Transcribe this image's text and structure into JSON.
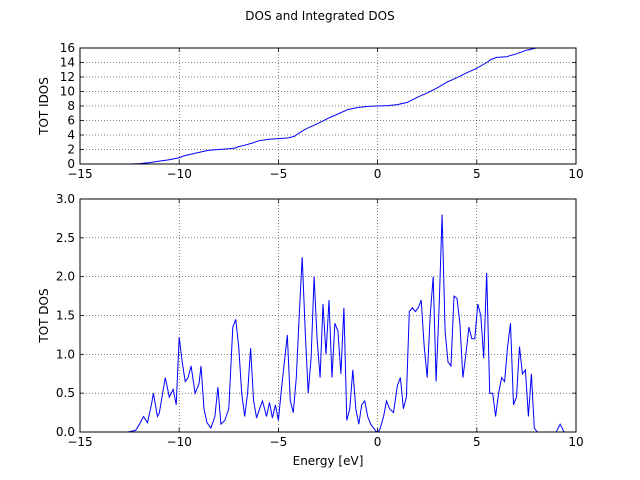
{
  "figure": {
    "title": "DOS and Integrated DOS"
  },
  "chart_data": [
    {
      "type": "line",
      "title": "",
      "xlabel": "",
      "ylabel": "TOT IDOS",
      "xlim": [
        -15,
        10
      ],
      "ylim": [
        0,
        16
      ],
      "xticks": [
        -15,
        -10,
        -5,
        0,
        5,
        10
      ],
      "xtick_labels": [
        "−15",
        "−10",
        "−5",
        "0",
        "5",
        "10"
      ],
      "yticks": [
        0,
        2,
        4,
        6,
        8,
        10,
        12,
        14,
        16
      ],
      "ytick_labels": [
        "0",
        "2",
        "4",
        "6",
        "8",
        "10",
        "12",
        "14",
        "16"
      ],
      "grid": true,
      "color": "#0000ff",
      "x": [
        -12.5,
        -12.0,
        -11.5,
        -11.0,
        -10.5,
        -10.0,
        -9.8,
        -9.5,
        -9.0,
        -8.5,
        -8.0,
        -7.5,
        -7.2,
        -7.0,
        -6.7,
        -6.3,
        -6.0,
        -5.5,
        -5.0,
        -4.5,
        -4.2,
        -4.0,
        -3.7,
        -3.5,
        -3.0,
        -2.5,
        -2.0,
        -1.5,
        -1.0,
        -0.5,
        0.0,
        0.5,
        1.0,
        1.5,
        2.0,
        2.5,
        3.0,
        3.5,
        4.0,
        4.5,
        5.0,
        5.5,
        5.7,
        6.0,
        6.5,
        7.0,
        7.5,
        8.0
      ],
      "y": [
        0.0,
        0.05,
        0.2,
        0.4,
        0.6,
        0.85,
        1.1,
        1.3,
        1.6,
        1.9,
        2.0,
        2.1,
        2.2,
        2.4,
        2.6,
        2.9,
        3.2,
        3.4,
        3.5,
        3.6,
        3.8,
        4.2,
        4.7,
        5.0,
        5.6,
        6.3,
        6.9,
        7.5,
        7.8,
        7.95,
        8.0,
        8.05,
        8.2,
        8.5,
        9.2,
        9.8,
        10.5,
        11.3,
        11.9,
        12.6,
        13.2,
        14.0,
        14.4,
        14.7,
        14.8,
        15.2,
        15.7,
        16.0
      ]
    },
    {
      "type": "line",
      "title": "",
      "xlabel": "Energy [eV]",
      "ylabel": "TOT DOS",
      "xlim": [
        -15,
        10
      ],
      "ylim": [
        0,
        3.0
      ],
      "xticks": [
        -15,
        -10,
        -5,
        0,
        5,
        10
      ],
      "xtick_labels": [
        "−15",
        "−10",
        "−5",
        "0",
        "5",
        "10"
      ],
      "yticks": [
        0.0,
        0.5,
        1.0,
        1.5,
        2.0,
        2.5,
        3.0
      ],
      "ytick_labels": [
        "0.0",
        "0.5",
        "1.0",
        "1.5",
        "2.0",
        "2.5",
        "3.0"
      ],
      "grid": true,
      "color": "#0000ff",
      "x": [
        -12.6,
        -12.2,
        -12.0,
        -11.8,
        -11.6,
        -11.4,
        -11.3,
        -11.1,
        -11.0,
        -10.8,
        -10.7,
        -10.5,
        -10.3,
        -10.15,
        -10.0,
        -9.85,
        -9.7,
        -9.55,
        -9.4,
        -9.2,
        -9.0,
        -8.9,
        -8.75,
        -8.6,
        -8.4,
        -8.2,
        -8.05,
        -7.9,
        -7.7,
        -7.5,
        -7.3,
        -7.15,
        -7.0,
        -6.85,
        -6.7,
        -6.55,
        -6.4,
        -6.25,
        -6.1,
        -5.95,
        -5.8,
        -5.6,
        -5.45,
        -5.3,
        -5.15,
        -5.0,
        -4.85,
        -4.7,
        -4.55,
        -4.4,
        -4.25,
        -4.1,
        -3.95,
        -3.8,
        -3.65,
        -3.5,
        -3.35,
        -3.2,
        -3.05,
        -2.9,
        -2.75,
        -2.6,
        -2.45,
        -2.3,
        -2.15,
        -2.0,
        -1.85,
        -1.7,
        -1.55,
        -1.4,
        -1.25,
        -1.1,
        -0.95,
        -0.8,
        -0.65,
        -0.5,
        -0.35,
        -0.2,
        -0.05,
        0.1,
        0.3,
        0.45,
        0.6,
        0.8,
        1.0,
        1.15,
        1.3,
        1.45,
        1.6,
        1.75,
        1.9,
        2.05,
        2.2,
        2.35,
        2.5,
        2.65,
        2.8,
        2.95,
        3.1,
        3.25,
        3.4,
        3.55,
        3.7,
        3.85,
        4.0,
        4.15,
        4.3,
        4.45,
        4.6,
        4.75,
        4.9,
        5.05,
        5.2,
        5.35,
        5.5,
        5.65,
        5.8,
        5.95,
        6.1,
        6.25,
        6.4,
        6.55,
        6.7,
        6.85,
        7.0,
        7.15,
        7.3,
        7.45,
        7.6,
        7.75,
        7.9,
        8.05,
        8.2,
        8.4,
        8.7,
        9.0,
        9.2,
        9.4,
        9.55,
        9.7,
        10.0
      ],
      "y": [
        0.0,
        0.02,
        0.1,
        0.2,
        0.12,
        0.35,
        0.5,
        0.2,
        0.25,
        0.55,
        0.7,
        0.45,
        0.55,
        0.35,
        1.22,
        0.9,
        0.65,
        0.7,
        0.85,
        0.5,
        0.62,
        0.85,
        0.3,
        0.12,
        0.05,
        0.2,
        0.58,
        0.1,
        0.15,
        0.3,
        1.35,
        1.45,
        1.1,
        0.5,
        0.2,
        0.5,
        1.08,
        0.4,
        0.18,
        0.3,
        0.4,
        0.2,
        0.38,
        0.18,
        0.35,
        0.15,
        0.55,
        0.9,
        1.25,
        0.4,
        0.25,
        0.7,
        1.5,
        2.25,
        1.3,
        0.5,
        0.95,
        2.0,
        1.2,
        0.7,
        1.65,
        1.0,
        1.7,
        0.7,
        1.4,
        1.3,
        0.75,
        1.6,
        0.15,
        0.3,
        0.8,
        0.3,
        0.1,
        0.35,
        0.4,
        0.2,
        0.1,
        0.05,
        0.0,
        0.02,
        0.2,
        0.4,
        0.3,
        0.25,
        0.6,
        0.7,
        0.3,
        0.45,
        1.55,
        1.6,
        1.55,
        1.6,
        1.7,
        1.1,
        0.7,
        1.5,
        2.0,
        0.65,
        1.6,
        2.8,
        1.3,
        0.9,
        0.85,
        1.75,
        1.72,
        1.4,
        0.7,
        1.0,
        1.35,
        1.2,
        1.2,
        1.65,
        1.5,
        0.95,
        2.05,
        0.5,
        0.5,
        0.2,
        0.5,
        0.7,
        0.65,
        1.1,
        1.4,
        0.35,
        0.45,
        1.1,
        0.75,
        0.8,
        0.2,
        0.75,
        0.05,
        0.0,
        0.0,
        0.0,
        0.0,
        0.0,
        0.1,
        0.0,
        0.0,
        0.0,
        0.0
      ]
    }
  ]
}
